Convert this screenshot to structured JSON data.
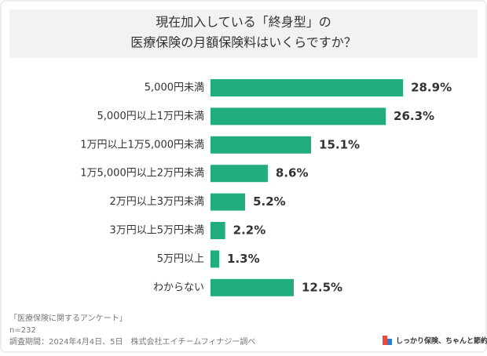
{
  "chart_data": {
    "type": "bar",
    "orientation": "horizontal",
    "title": [
      "現在加入している「終身型」の",
      "医療保険の月額保険料はいくらですか？"
    ],
    "categories": [
      "5,000円未満",
      "5,000円以上1万円未満",
      "1万円以上1万5,000円未満",
      "1万5,000円以上2万円未満",
      "2万円以上3万円未満",
      "3万円以上5万円未満",
      "5万円以上",
      "わからない"
    ],
    "values": [
      28.9,
      26.3,
      15.1,
      8.6,
      5.2,
      2.2,
      1.3,
      12.5
    ],
    "value_labels": [
      "28.9%",
      "26.3%",
      "15.1%",
      "8.6%",
      "5.2%",
      "2.2%",
      "1.3%",
      "12.5%"
    ],
    "color": "#22ae7c",
    "notes": [
      "「医療保険に関するアンケート」",
      "n=232",
      "調査期間：2024年4月4日、5日　株式会社エイチームフィナジー調べ"
    ],
    "logo": "しっかり保険、ちゃんと節約。"
  }
}
